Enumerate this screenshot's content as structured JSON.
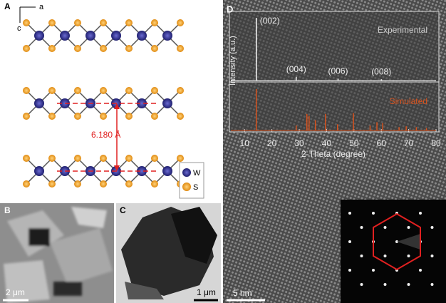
{
  "panels": {
    "a": {
      "label": "A",
      "axis_a": "a",
      "axis_c": "c",
      "spacing": "6.180 Å",
      "legend": [
        "W",
        "S"
      ]
    },
    "b": {
      "label": "B",
      "scale_bar": "2 μm"
    },
    "c": {
      "label": "C",
      "scale_bar": "1 μm"
    },
    "d": {
      "label": "D",
      "scale_bar": "5 nm"
    }
  },
  "chart_data": {
    "type": "xrd",
    "xlabel": "2-Theta (degree)",
    "ylabel": "Intensity (a.u.)",
    "xlim": [
      5,
      80
    ],
    "xticks": [
      10,
      20,
      30,
      40,
      50,
      60,
      70,
      80
    ],
    "series": [
      {
        "name": "Experimental",
        "color": "#ffffff",
        "x": [
          14.3,
          28.9,
          44.2,
          60.0
        ],
        "values": [
          100,
          6,
          3,
          2
        ],
        "peak_labels": [
          "(002)",
          "(004)",
          "(006)",
          "(008)"
        ]
      },
      {
        "name": "Simulated",
        "color": "#d9531e",
        "x": [
          14.3,
          28.9,
          32.8,
          33.6,
          35.9,
          39.6,
          44.0,
          49.8,
          55.9,
          58.4,
          60.5,
          66.5,
          69.1,
          72.8,
          76.5
        ],
        "values": [
          100,
          12,
          40,
          35,
          25,
          40,
          15,
          42,
          12,
          20,
          18,
          8,
          10,
          8,
          6
        ]
      }
    ]
  }
}
